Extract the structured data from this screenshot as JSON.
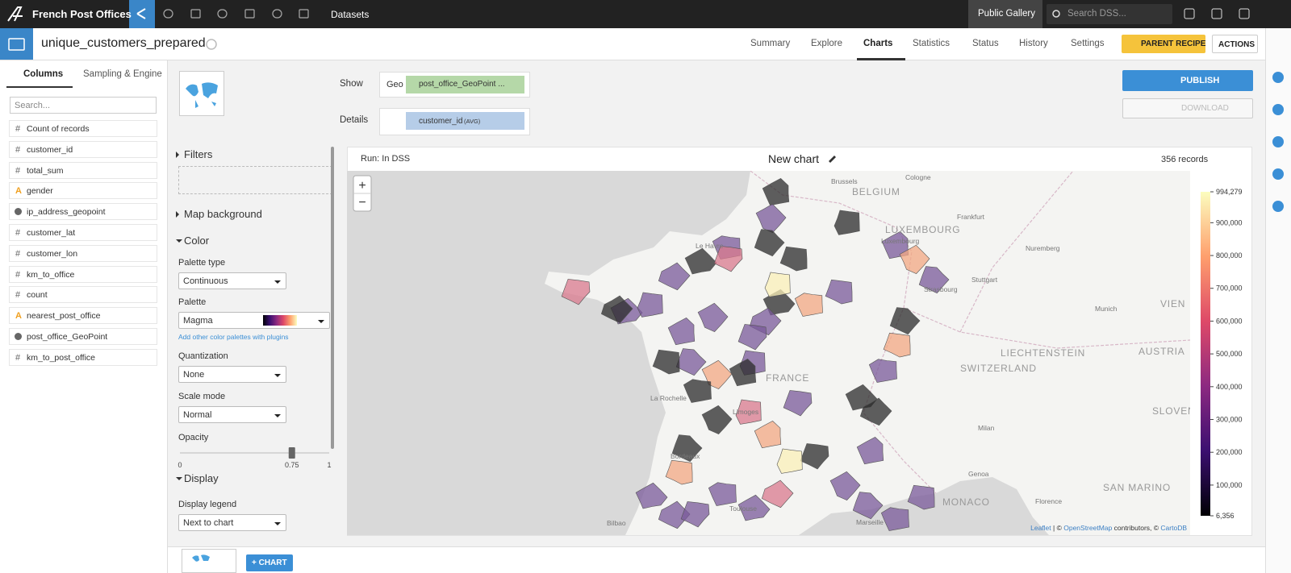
{
  "topbar": {
    "project": "French Post Offices",
    "nav": "Datasets",
    "gallery": "Public Gallery",
    "search": "Search DSS..."
  },
  "header": {
    "dataset": "unique_customers_prepared",
    "tabs": [
      "Summary",
      "Explore",
      "Charts",
      "Statistics",
      "Status",
      "History",
      "Settings"
    ],
    "active_tab": "Charts",
    "parent_recipe": "PARENT RECIPE",
    "actions": "ACTIONS"
  },
  "sidebar": {
    "tabs": [
      "Columns",
      "Sampling & Engine"
    ],
    "search": "Search...",
    "columns": [
      {
        "icon": "#",
        "name": "Count of records"
      },
      {
        "icon": "#",
        "name": "customer_id"
      },
      {
        "icon": "#",
        "name": "total_sum"
      },
      {
        "icon": "A",
        "name": "gender"
      },
      {
        "icon": null,
        "name": "ip_address_geopoint"
      },
      {
        "icon": "#",
        "name": "customer_lat"
      },
      {
        "icon": "#",
        "name": "customer_lon"
      },
      {
        "icon": "#",
        "name": "km_to_office"
      },
      {
        "icon": "#",
        "name": "count"
      },
      {
        "icon": "A",
        "name": "nearest_post_office"
      },
      {
        "icon": null,
        "name": "post_office_GeoPoint"
      },
      {
        "icon": "#",
        "name": "km_to_post_office"
      }
    ]
  },
  "controls": {
    "show_label": "Show",
    "geo": "Geo",
    "geo_field": "post_office_GeoPoint ...",
    "details_label": "Details",
    "details_field": "customer_id",
    "details_agg": "(AVG)"
  },
  "buttons": {
    "publish": "PUBLISH",
    "download": "DOWNLOAD"
  },
  "options": {
    "filters": "Filters",
    "map_background": "Map background",
    "color": "Color",
    "palette_type_label": "Palette type",
    "palette_type": "Continuous",
    "palette_label": "Palette",
    "palette": "Magma",
    "plugins_link": "Add other color palettes with plugins",
    "quantization_label": "Quantization",
    "quantization": "None",
    "scale_mode_label": "Scale mode",
    "scale_mode": "Normal",
    "opacity_label": "Opacity",
    "opacity": 0.75,
    "opacity_ticks": [
      0,
      0.75,
      1
    ],
    "display": "Display",
    "display_legend_label": "Display legend",
    "display_legend": "Next to chart"
  },
  "chart": {
    "run": "Run: In DSS",
    "title": "New chart",
    "records": "356 records",
    "zoom_in": "+",
    "zoom_out": "−",
    "legend_range": [
      6356,
      994279
    ],
    "legend_ticks": [
      {
        "value": 994279,
        "label": "994,279"
      },
      {
        "value": 900000,
        "label": "900,000"
      },
      {
        "value": 800000,
        "label": "800,000"
      },
      {
        "value": 700000,
        "label": "700,000"
      },
      {
        "value": 600000,
        "label": "600,000"
      },
      {
        "value": 500000,
        "label": "500,000"
      },
      {
        "value": 400000,
        "label": "400,000"
      },
      {
        "value": 300000,
        "label": "300,000"
      },
      {
        "value": 200000,
        "label": "200,000"
      },
      {
        "value": 100000,
        "label": "100,000"
      },
      {
        "value": 6356,
        "label": "6,356"
      }
    ],
    "map_labels": [
      "Brussels",
      "BELGIUM",
      "Cologne",
      "LUXEMBOURG",
      "Luxembourg",
      "Frankfurt",
      "Le Havre",
      "Nuremberg",
      "Stuttgart",
      "Strasbourg",
      "Munich",
      "VIEN",
      "AUSTRIA",
      "LIECHTENSTEIN",
      "SWITZERLAND",
      "FRANCE",
      "La Rochelle",
      "Limoges",
      "Milan",
      "SLOVENIA",
      "Bordeaux",
      "Genoa",
      "SAN MARINO",
      "Florence",
      "MONACO",
      "Toulouse",
      "Marseille",
      "Bilbao"
    ],
    "attribution": [
      "Leaflet",
      "| ©",
      "OpenStreetMap",
      "contributors, ©",
      "CartoDB"
    ]
  },
  "footer": {
    "add_chart": "+ CHART"
  }
}
